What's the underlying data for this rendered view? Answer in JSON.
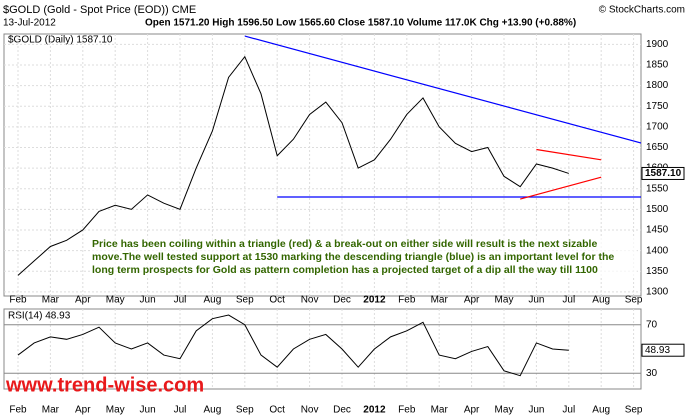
{
  "header": {
    "symbol": "$GOLD (Gold - Spot Price (EOD)) CME",
    "copyright": "© StockCharts.com",
    "date": "13-Jul-2012",
    "stats": "Open 1571.20 High 1596.50 Low 1565.60 Close 1587.10 Volume 117.0K Chg +13.90 (+0.88%)"
  },
  "annotation": "Price has been coiling within a triangle (red) & a break-out on either side will result is the next sizable move.The well tested support at 1530 marking the descending triangle (blue) is an important level for the long term prospects for Gold as pattern completion has a projected target of a dip all the way till 1100",
  "watermark": "www.trend-wise.com",
  "chart_data": [
    {
      "type": "line",
      "categories": [
        "Feb",
        null,
        "Mar",
        null,
        "Apr",
        null,
        "May",
        null,
        "Jun",
        null,
        "Jul",
        null,
        "Aug",
        null,
        "Sep",
        null,
        "Oct",
        null,
        "Nov",
        null,
        "Dec",
        null,
        "2012",
        null,
        "Feb",
        null,
        "Mar",
        null,
        "Apr",
        null,
        "May",
        null,
        "Jun",
        null,
        "Jul",
        null,
        "Aug",
        null,
        "Sep",
        null
      ],
      "series": [
        {
          "name": "$GOLD (Daily) 1587.10",
          "color": "#000000",
          "values": [
            1340,
            1375,
            1410,
            1425,
            1450,
            1495,
            1510,
            1500,
            1535,
            1515,
            1500,
            1600,
            1690,
            1820,
            1870,
            1780,
            1630,
            1670,
            1730,
            1760,
            1710,
            1600,
            1620,
            1670,
            1730,
            1770,
            1700,
            1660,
            1640,
            1650,
            1580,
            1555,
            1610,
            1600,
            1587,
            null,
            null,
            null,
            null,
            null
          ]
        }
      ],
      "last_label": "1587.10",
      "trendlines": [
        {
          "color": "#0000ff",
          "x": [
            14,
            39
          ],
          "values": [
            1920,
            1655
          ]
        },
        {
          "color": "#0000ff",
          "x": [
            16,
            39
          ],
          "values": [
            1530,
            1530
          ]
        },
        {
          "color": "#ff0000",
          "x": [
            32,
            36
          ],
          "values": [
            1645,
            1620
          ]
        },
        {
          "color": "#ff0000",
          "x": [
            31,
            36
          ],
          "values": [
            1525,
            1578
          ]
        }
      ],
      "ylim": [
        1290,
        1925
      ],
      "yticks": [
        1300,
        1350,
        1400,
        1450,
        1500,
        1550,
        1600,
        1650,
        1700,
        1750,
        1800,
        1850,
        1900
      ],
      "grid": true
    },
    {
      "type": "line",
      "series": [
        {
          "name": "RSI(14) 48.93",
          "color": "#000000",
          "values": [
            45,
            55,
            60,
            58,
            62,
            68,
            55,
            50,
            55,
            45,
            42,
            65,
            75,
            78,
            70,
            45,
            35,
            50,
            58,
            62,
            50,
            35,
            50,
            60,
            65,
            72,
            45,
            42,
            48,
            52,
            32,
            28,
            55,
            50,
            49,
            null,
            null,
            null,
            null,
            null
          ]
        }
      ],
      "last_label": "48.93",
      "ylim": [
        17,
        83
      ],
      "yticks": [
        30,
        70
      ],
      "grid": true
    }
  ]
}
